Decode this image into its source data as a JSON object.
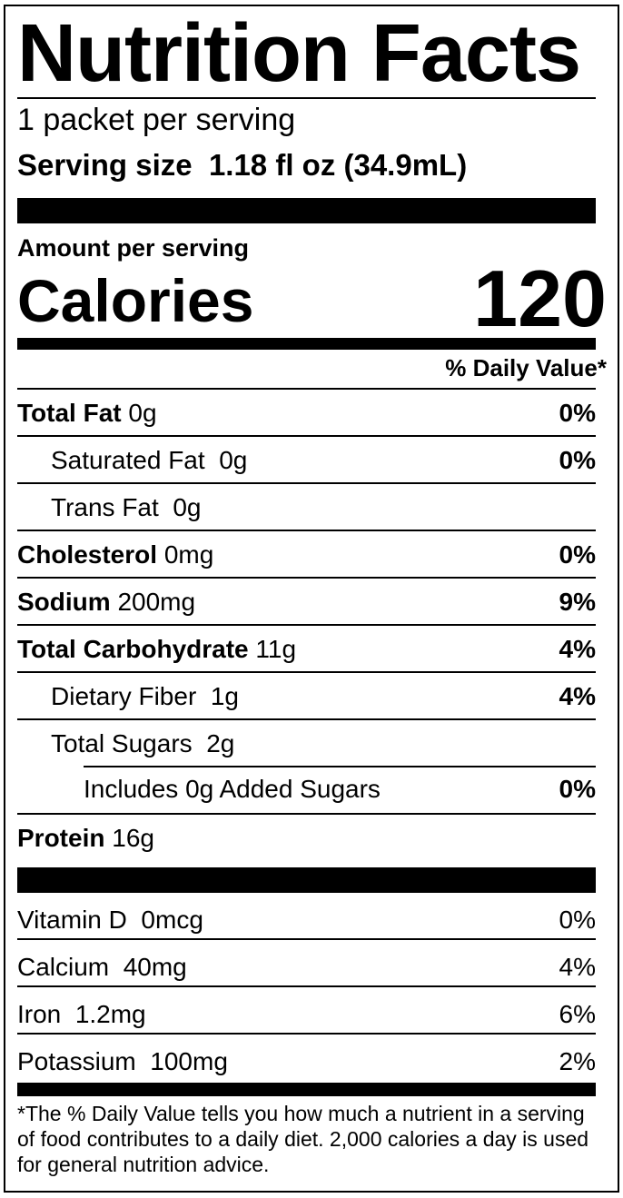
{
  "title": "Nutrition Facts",
  "servings_per_container": "1 packet per serving",
  "serving_size_label": "Serving size",
  "serving_size_value": "1.18 fl oz (34.9mL)",
  "amount_per_serving": "Amount per serving",
  "calories_label": "Calories",
  "calories_value": "120",
  "daily_value_header": "% Daily Value*",
  "nutrients": [
    {
      "name": "Total Fat",
      "amount": "0g",
      "dv": "0%",
      "bold": true,
      "indent": 0
    },
    {
      "name": "Saturated Fat",
      "amount": "0g",
      "dv": "0%",
      "bold": false,
      "indent": 1
    },
    {
      "name": "Trans Fat",
      "amount": "0g",
      "dv": "",
      "bold": false,
      "indent": 1
    },
    {
      "name": "Cholesterol",
      "amount": "0mg",
      "dv": "0%",
      "bold": true,
      "indent": 0
    },
    {
      "name": "Sodium",
      "amount": "200mg",
      "dv": "9%",
      "bold": true,
      "indent": 0
    },
    {
      "name": "Total Carbohydrate",
      "amount": "11g",
      "dv": "4%",
      "bold": true,
      "indent": 0
    },
    {
      "name": "Dietary Fiber",
      "amount": "1g",
      "dv": "4%",
      "bold": false,
      "indent": 1
    },
    {
      "name": "Total Sugars",
      "amount": "2g",
      "dv": "",
      "bold": false,
      "indent": 1
    },
    {
      "name": "Includes 0g Added Sugars",
      "amount": "",
      "dv": "0%",
      "bold": false,
      "indent": 2
    },
    {
      "name": "Protein",
      "amount": "16g",
      "dv": "",
      "bold": true,
      "indent": 0
    }
  ],
  "vitamins": [
    {
      "name": "Vitamin D",
      "amount": "0mcg",
      "dv": "0%"
    },
    {
      "name": "Calcium",
      "amount": "40mg",
      "dv": "4%"
    },
    {
      "name": "Iron",
      "amount": "1.2mg",
      "dv": "6%"
    },
    {
      "name": "Potassium",
      "amount": "100mg",
      "dv": "2%"
    }
  ],
  "footnote": "*The % Daily Value tells you how much a nutrient in a serving of food contributes to a daily diet. 2,000 calories a day is used for general nutrition advice."
}
